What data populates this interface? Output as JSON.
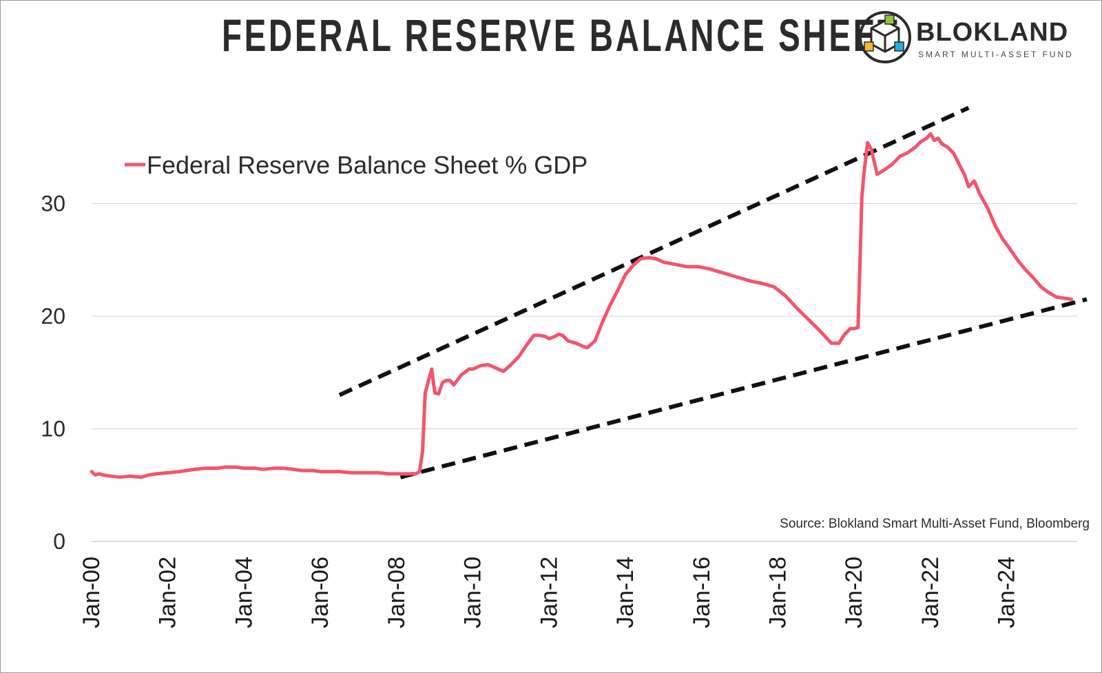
{
  "header": {
    "title": "FEDERAL RESERVE BALANCE SHEET",
    "logo_name": "BLOKLAND",
    "logo_tagline": "SMART MULTI-ASSET FUND"
  },
  "colors": {
    "series": "#f2556b",
    "trend": "#111111",
    "grid": "#d9d9d9",
    "logo_green": "#8cc63f",
    "logo_yellow": "#f5b82e",
    "logo_blue": "#29abe2"
  },
  "chart_data": {
    "type": "line",
    "title": "FEDERAL RESERVE BALANCE SHEET",
    "xlabel": "",
    "ylabel": "",
    "x_range": [
      2000.0,
      2025.83
    ],
    "ylim": [
      0,
      37
    ],
    "yticks": [
      0,
      10,
      20,
      30
    ],
    "ytick_labels": [
      "0",
      "10",
      "20",
      "30"
    ],
    "xticks": [
      2000,
      2002,
      2004,
      2006,
      2008,
      2010,
      2012,
      2014,
      2016,
      2018,
      2020,
      2022,
      2024
    ],
    "xtick_labels": [
      "Jan-00",
      "Jan-02",
      "Jan-04",
      "Jan-06",
      "Jan-08",
      "Jan-10",
      "Jan-12",
      "Jan-14",
      "Jan-16",
      "Jan-18",
      "Jan-20",
      "Jan-22",
      "Jan-24"
    ],
    "grid": true,
    "legend": {
      "position": "top-left",
      "entries": [
        "Federal Reserve Balance Sheet % GDP"
      ]
    },
    "source": "Source: Blokland Smart Multi-Asset Fund, Bloomberg",
    "series": [
      {
        "name": "Federal Reserve Balance Sheet % GDP",
        "x": [
          2000.0,
          2000.1,
          2000.2,
          2000.3,
          2000.5,
          2000.75,
          2001.0,
          2001.3,
          2001.5,
          2001.7,
          2002.0,
          2002.3,
          2002.5,
          2002.7,
          2003.0,
          2003.3,
          2003.5,
          2003.8,
          2004.0,
          2004.3,
          2004.5,
          2004.8,
          2005.0,
          2005.3,
          2005.5,
          2005.8,
          2006.0,
          2006.3,
          2006.5,
          2006.8,
          2007.0,
          2007.3,
          2007.5,
          2007.8,
          2008.0,
          2008.3,
          2008.5,
          2008.55,
          2008.6,
          2008.68,
          2008.75,
          2008.83,
          2008.92,
          2009.0,
          2009.1,
          2009.2,
          2009.3,
          2009.4,
          2009.5,
          2009.7,
          2009.9,
          2010.0,
          2010.2,
          2010.4,
          2010.6,
          2010.8,
          2011.0,
          2011.2,
          2011.4,
          2011.6,
          2011.75,
          2011.9,
          2012.0,
          2012.15,
          2012.25,
          2012.35,
          2012.5,
          2012.7,
          2012.9,
          2013.0,
          2013.2,
          2013.4,
          2013.6,
          2013.8,
          2014.0,
          2014.2,
          2014.4,
          2014.6,
          2014.8,
          2015.0,
          2015.3,
          2015.6,
          2015.9,
          2016.2,
          2016.5,
          2016.8,
          2017.0,
          2017.3,
          2017.6,
          2017.9,
          2018.2,
          2018.5,
          2018.8,
          2019.1,
          2019.4,
          2019.6,
          2019.75,
          2019.9,
          2020.0,
          2020.1,
          2020.15,
          2020.2,
          2020.25,
          2020.35,
          2020.45,
          2020.6,
          2020.8,
          2021.0,
          2021.2,
          2021.4,
          2021.6,
          2021.75,
          2021.9,
          2022.0,
          2022.1,
          2022.2,
          2022.3,
          2022.45,
          2022.6,
          2022.75,
          2022.9,
          2023.0,
          2023.15,
          2023.3,
          2023.5,
          2023.7,
          2023.9,
          2024.1,
          2024.3,
          2024.5,
          2024.7,
          2024.9,
          2025.1,
          2025.3,
          2025.5,
          2025.7
        ],
        "y": [
          6.2,
          5.9,
          6.0,
          5.9,
          5.8,
          5.7,
          5.8,
          5.7,
          5.9,
          6.0,
          6.1,
          6.2,
          6.3,
          6.4,
          6.5,
          6.5,
          6.6,
          6.6,
          6.5,
          6.5,
          6.4,
          6.5,
          6.5,
          6.4,
          6.3,
          6.3,
          6.2,
          6.2,
          6.2,
          6.1,
          6.1,
          6.1,
          6.1,
          6.0,
          6.0,
          6.0,
          6.0,
          6.1,
          6.2,
          8.0,
          13.2,
          14.2,
          15.3,
          13.2,
          13.1,
          14.1,
          14.3,
          14.3,
          13.9,
          14.8,
          15.3,
          15.3,
          15.6,
          15.7,
          15.4,
          15.1,
          15.7,
          16.4,
          17.4,
          18.3,
          18.3,
          18.2,
          18.0,
          18.2,
          18.4,
          18.3,
          17.8,
          17.6,
          17.3,
          17.2,
          17.8,
          19.5,
          21.0,
          22.3,
          23.7,
          24.5,
          25.1,
          25.2,
          25.1,
          24.8,
          24.6,
          24.4,
          24.4,
          24.2,
          23.9,
          23.6,
          23.4,
          23.1,
          22.9,
          22.6,
          21.8,
          20.7,
          19.7,
          18.7,
          17.6,
          17.6,
          18.4,
          18.9,
          18.9,
          19.0,
          24.5,
          30.5,
          32.5,
          35.4,
          34.8,
          32.6,
          33.0,
          33.5,
          34.2,
          34.5,
          35.0,
          35.5,
          35.8,
          36.2,
          35.6,
          35.8,
          35.3,
          35.0,
          34.5,
          33.5,
          32.5,
          31.5,
          32.0,
          30.8,
          29.6,
          28.0,
          26.8,
          25.9,
          24.9,
          24.1,
          23.4,
          22.6,
          22.1,
          21.7,
          21.6,
          21.5
        ]
      }
    ],
    "trendlines": [
      {
        "name": "upper-trendline",
        "from": [
          2006.5,
          13.0
        ],
        "to": [
          2023.0,
          38.5
        ]
      },
      {
        "name": "lower-trendline",
        "from": [
          2008.1,
          5.7
        ],
        "to": [
          2026.1,
          21.5
        ]
      }
    ]
  }
}
